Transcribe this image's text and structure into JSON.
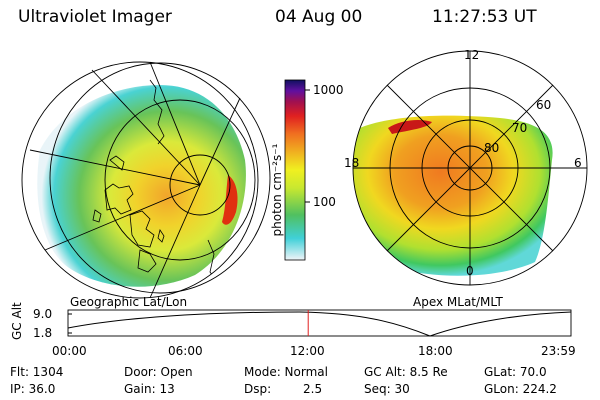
{
  "header": {
    "instrument": "Ultraviolet Imager",
    "date": "04 Aug 00",
    "time": "11:27:53 UT"
  },
  "left_panel": {
    "caption": "Geographic Lat/Lon"
  },
  "right_panel": {
    "caption": "Apex MLat/MLT",
    "mlt_labels": [
      "12",
      "18",
      "6",
      "0"
    ],
    "mlat_labels": [
      "60",
      "70",
      "80"
    ]
  },
  "colorbar": {
    "label": "photon cm⁻²s⁻¹",
    "ticks": [
      "1000",
      "100"
    ],
    "colors": [
      "#e8f0f8",
      "#40d0d8",
      "#50c060",
      "#c8e830",
      "#f0f020",
      "#f0b020",
      "#f07020",
      "#e02020",
      "#a01050",
      "#6010a0",
      "#101060"
    ]
  },
  "timeline": {
    "ylabel": "GC Alt",
    "y_ticks": [
      "9.0",
      "1.8"
    ],
    "x_ticks": [
      "00:00",
      "06:00",
      "12:00",
      "18:00",
      "23:59"
    ],
    "current_time_fraction": 0.4775
  },
  "info": {
    "flt": "Flt: 1304",
    "ip": "IP: 36.0",
    "door": "Door: Open",
    "gain": "Gain: 13",
    "mode": "Mode: Normal",
    "dsp_label": "Dsp:",
    "dsp_value": "2.5",
    "gc_alt": "GC Alt: 8.5 Re",
    "seq": "Seq: 30",
    "glat": "GLat: 70.0",
    "glon": "GLon: 224.2"
  }
}
